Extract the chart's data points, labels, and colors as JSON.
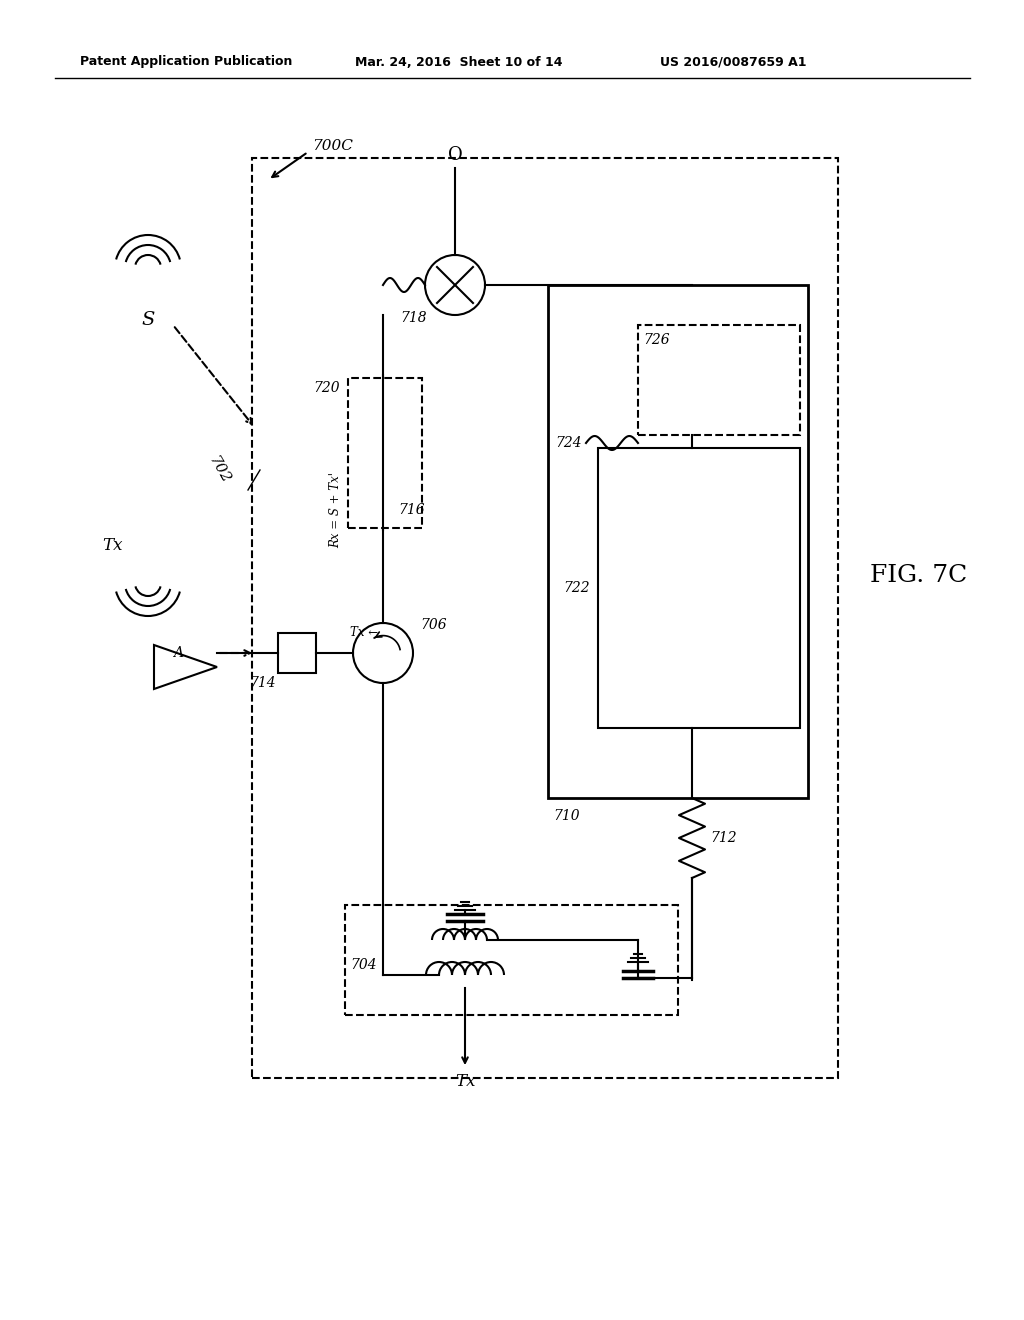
{
  "bg_color": "#ffffff",
  "line_color": "#000000",
  "header_left": "Patent Application Publication",
  "header_center": "Mar. 24, 2016  Sheet 10 of 14",
  "header_right": "US 2016/0087659 A1",
  "fig_label": "FIG. 7C",
  "diagram_id": "700C"
}
